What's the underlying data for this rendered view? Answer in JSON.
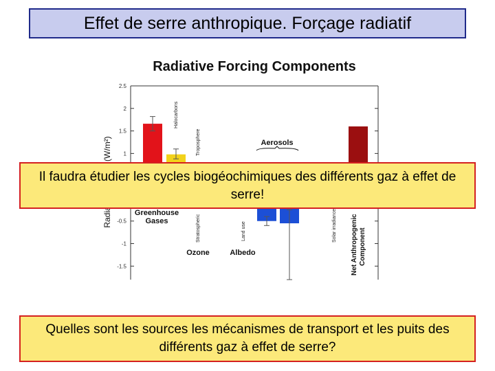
{
  "slide": {
    "title": "Effet de serre anthropique. Forçage radiatif",
    "callout_1": "Il faudra étudier les cycles biogéochimiques des différents gaz à effet de serre!",
    "callout_2": "Quelles sont les sources les mécanismes de transport et les puits des différents gaz à effet de serre?"
  },
  "chart_data": {
    "type": "bar",
    "title": "Radiative Forcing Components",
    "ylabel": "Radiative Forcing (W/m²)",
    "ylim": [
      -1.8,
      2.5
    ],
    "yticks": [
      "2.5",
      "2",
      "1.5",
      "1",
      "0.5",
      "-0.5",
      "-1",
      "-1.5"
    ],
    "grid": false,
    "group_labels": [
      "Greenhouse Gases",
      "Ozone",
      "Albedo",
      "Aerosols"
    ],
    "bar_labels": [
      "Halocarbons",
      "Troposphere",
      "Stratospheric",
      "Land use",
      "Solar irradiance",
      "Net Anthropogenic Component"
    ],
    "colors": {
      "red": "#e2131a",
      "yellow": "#f2d21a",
      "blue": "#1c4fd6",
      "darkred": "#9b0f10"
    },
    "bars": [
      {
        "value": 1.66,
        "err_low": 1.5,
        "err_high": 1.82,
        "color": "red"
      },
      {
        "value": 0.98,
        "err_low": 0.88,
        "err_high": 1.1,
        "color": "yellow"
      },
      {
        "value": -0.5,
        "err_low": -0.6,
        "err_high": -0.4,
        "color": "blue"
      },
      {
        "value": -0.55,
        "err_low": -1.8,
        "err_high": -0.25,
        "color": "blue"
      },
      {
        "value": 1.6,
        "color": "darkred"
      }
    ]
  }
}
